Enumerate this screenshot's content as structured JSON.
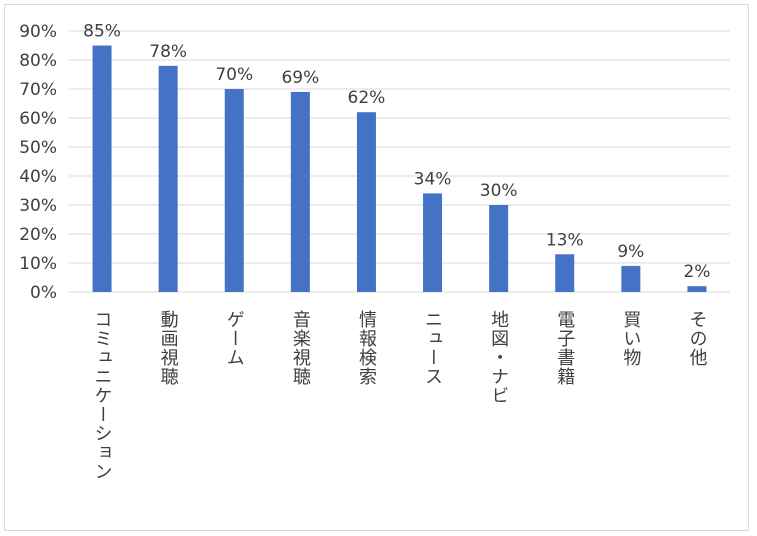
{
  "chart_data": {
    "type": "bar",
    "categories": [
      "コミュニケーション",
      "動画視聴",
      "ゲーム",
      "音楽視聴",
      "情報検索",
      "ニュース",
      "地図・ナビ",
      "電子書籍",
      "買い物",
      "その他"
    ],
    "values": [
      85,
      78,
      70,
      69,
      62,
      34,
      30,
      13,
      9,
      2
    ],
    "data_labels": [
      "85%",
      "78%",
      "70%",
      "69%",
      "62%",
      "34%",
      "30%",
      "13%",
      "9%",
      "2%"
    ],
    "y_ticks": [
      0,
      10,
      20,
      30,
      40,
      50,
      60,
      70,
      80,
      90
    ],
    "y_tick_labels": [
      "0%",
      "10%",
      "20%",
      "30%",
      "40%",
      "50%",
      "60%",
      "70%",
      "80%",
      "90%"
    ],
    "ylim": [
      0,
      90
    ],
    "title": "",
    "xlabel": "",
    "ylabel": "",
    "grid": true,
    "legend": "none",
    "bar_color": "#4472c4",
    "grid_color": "#d9d9d9",
    "text_color": "#404040"
  }
}
